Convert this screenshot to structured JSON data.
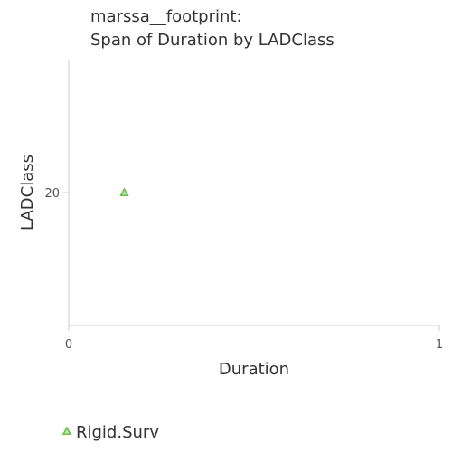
{
  "chart_data": {
    "type": "scatter",
    "title_lines": [
      "marssa__footprint:",
      "Span of Duration by LADClass"
    ],
    "xlabel": "Duration",
    "ylabel": "LADClass",
    "xlim": [
      0,
      1
    ],
    "ylim": [
      0,
      40
    ],
    "x_ticks": [
      0,
      1
    ],
    "x_tick_labels": [
      "0",
      "1"
    ],
    "y_ticks": [
      20
    ],
    "y_tick_labels": [
      "20"
    ],
    "grid": false,
    "legend_position": "bottom-left",
    "series": [
      {
        "name": "Rigid.Surv",
        "marker": "triangle",
        "color": "#6abf4b",
        "points": [
          {
            "x": 0.15,
            "y": 20
          }
        ]
      }
    ]
  }
}
